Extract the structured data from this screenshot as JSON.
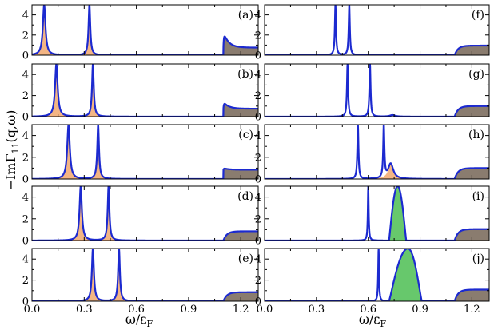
{
  "chart_data": {
    "type": "area",
    "layout": {
      "rows": 5,
      "columns": 2
    },
    "ylabel": {
      "prefix": "−ImΓ",
      "sub": "11",
      "suffix": "(q,ω)"
    },
    "xlabel": {
      "main": "ω/ε",
      "sub": "F"
    },
    "xlim": [
      0.0,
      1.3
    ],
    "ylim": [
      0,
      5
    ],
    "xticks": [
      "0.0",
      "0.3",
      "0.6",
      "0.9",
      "1.2"
    ],
    "xtick_values": [
      0.0,
      0.3,
      0.6,
      0.9,
      1.2
    ],
    "yticks": [
      "0",
      "2",
      "4"
    ],
    "ytick_values": [
      0,
      2,
      4
    ],
    "colors": {
      "line": "#1c2ad0",
      "peak_fill": "#f3b584",
      "green_fill": "#67c86c",
      "continuum_fill": "#8a7c6f"
    },
    "panels": [
      {
        "label": "(a)",
        "col": 0,
        "row": 0,
        "peaks": [
          {
            "x": 0.07,
            "w": 0.009,
            "h": 5.0,
            "fill": "peak"
          },
          {
            "x": 0.33,
            "w": 0.006,
            "h": 5.0,
            "fill": "peak"
          }
        ],
        "continuum": {
          "start": 1.1,
          "shape": "edge",
          "peak": 2.3,
          "tail": 0.75
        }
      },
      {
        "label": "(b)",
        "col": 0,
        "row": 1,
        "peaks": [
          {
            "x": 0.14,
            "w": 0.009,
            "h": 5.0,
            "fill": "peak"
          },
          {
            "x": 0.35,
            "w": 0.006,
            "h": 5.0,
            "fill": "peak"
          }
        ],
        "continuum": {
          "start": 1.1,
          "shape": "edge",
          "peak": 1.4,
          "tail": 0.75
        }
      },
      {
        "label": "(c)",
        "col": 0,
        "row": 2,
        "peaks": [
          {
            "x": 0.21,
            "w": 0.009,
            "h": 5.0,
            "fill": "peak"
          },
          {
            "x": 0.38,
            "w": 0.006,
            "h": 5.0,
            "fill": "peak"
          }
        ],
        "continuum": {
          "start": 1.1,
          "shape": "edge",
          "peak": 1.0,
          "tail": 0.85
        }
      },
      {
        "label": "(d)",
        "col": 0,
        "row": 3,
        "peaks": [
          {
            "x": 0.28,
            "w": 0.008,
            "h": 5.0,
            "fill": "peak"
          },
          {
            "x": 0.44,
            "w": 0.006,
            "h": 5.0,
            "fill": "peak"
          }
        ],
        "continuum": {
          "start": 1.1,
          "shape": "flat",
          "peak": 0.85,
          "tail": 0.85
        }
      },
      {
        "label": "(e)",
        "col": 0,
        "row": 4,
        "peaks": [
          {
            "x": 0.35,
            "w": 0.007,
            "h": 5.0,
            "fill": "peak"
          },
          {
            "x": 0.5,
            "w": 0.006,
            "h": 5.0,
            "fill": "peak"
          }
        ],
        "continuum": {
          "start": 1.1,
          "shape": "flat",
          "peak": 0.85,
          "tail": 0.85
        }
      },
      {
        "label": "(f)",
        "col": 1,
        "row": 0,
        "peaks": [
          {
            "x": 0.41,
            "w": 0.004,
            "h": 5.0,
            "fill": "none"
          },
          {
            "x": 0.49,
            "w": 0.004,
            "h": 5.0,
            "fill": "none"
          }
        ],
        "continuum": {
          "start": 1.1,
          "shape": "flat",
          "peak": 0.9,
          "tail": 0.95
        }
      },
      {
        "label": "(g)",
        "col": 1,
        "row": 1,
        "peaks": [
          {
            "x": 0.48,
            "w": 0.004,
            "h": 5.0,
            "fill": "none"
          },
          {
            "x": 0.61,
            "w": 0.004,
            "h": 5.0,
            "fill": "none"
          },
          {
            "x": 0.74,
            "w": 0.018,
            "h": 0.15,
            "fill": "none"
          }
        ],
        "continuum": {
          "start": 1.1,
          "shape": "flat",
          "peak": 1.0,
          "tail": 1.0
        }
      },
      {
        "label": "(h)",
        "col": 1,
        "row": 2,
        "peaks": [
          {
            "x": 0.54,
            "w": 0.004,
            "h": 5.0,
            "fill": "none"
          },
          {
            "x": 0.69,
            "w": 0.004,
            "h": 5.0,
            "fill": "none"
          },
          {
            "x": 0.73,
            "w": 0.018,
            "h": 1.4,
            "fill": "peak"
          }
        ],
        "continuum": {
          "start": 1.1,
          "shape": "flat",
          "peak": 1.0,
          "tail": 1.0
        }
      },
      {
        "label": "(i)",
        "col": 1,
        "row": 3,
        "peaks": [
          {
            "x": 0.6,
            "w": 0.003,
            "h": 5.0,
            "fill": "none"
          }
        ],
        "band": {
          "x0": 0.72,
          "x1": 0.82,
          "peak": 0.77,
          "h": 5.0
        },
        "continuum": {
          "start": 1.1,
          "shape": "flat",
          "peak": 1.05,
          "tail": 1.05
        }
      },
      {
        "label": "(j)",
        "col": 1,
        "row": 4,
        "peaks": [
          {
            "x": 0.66,
            "w": 0.003,
            "h": 5.0,
            "fill": "none"
          }
        ],
        "band": {
          "x0": 0.72,
          "x1": 0.91,
          "peak": 0.83,
          "h": 5.0
        },
        "continuum": {
          "start": 1.1,
          "shape": "flat",
          "peak": 1.1,
          "tail": 1.1
        }
      }
    ]
  }
}
